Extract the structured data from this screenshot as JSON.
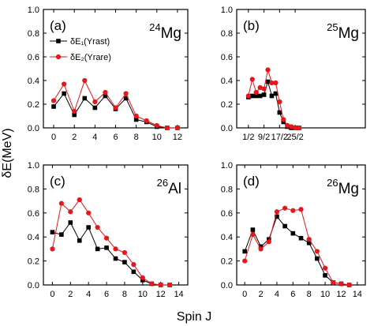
{
  "figure": {
    "ylabel": "δE(MeV)",
    "xlabel": "Spin J"
  },
  "legend": {
    "entries": [
      {
        "label": "δE₁(Yrast)",
        "color": "#000000",
        "marker": "square"
      },
      {
        "label": "δE₂(Yrare)",
        "color": "#e8151b",
        "marker": "circle"
      }
    ]
  },
  "chart_data": [
    {
      "type": "line",
      "panel": "(a)",
      "label_mass": "24",
      "label_element": "Mg",
      "xlim": [
        -1,
        13
      ],
      "ylim": [
        0.0,
        1.0
      ],
      "x_ticks": [
        0,
        2,
        4,
        6,
        8,
        10,
        12
      ],
      "x_tick_labels": [
        "0",
        "2",
        "4",
        "6",
        "8",
        "10",
        "12"
      ],
      "y_ticks": [
        0.0,
        0.2,
        0.4,
        0.6,
        0.8,
        1.0
      ],
      "y_tick_labels": [
        "0.0",
        "0.2",
        "0.4",
        "0.6",
        "0.8",
        "1.0"
      ],
      "series": [
        {
          "name": "δE₁(Yrast)",
          "color": "#000000",
          "marker": "square",
          "x": [
            0,
            1,
            2,
            3,
            4,
            5,
            6,
            7,
            8,
            9,
            10,
            11,
            12
          ],
          "y": [
            0.18,
            0.29,
            0.11,
            0.25,
            0.17,
            0.27,
            0.16,
            0.25,
            0.07,
            0.05,
            0.01,
            0.0,
            0.0
          ]
        },
        {
          "name": "δE₂(Yrare)",
          "color": "#e8151b",
          "marker": "circle",
          "x": [
            0,
            1,
            2,
            3,
            4,
            5,
            6,
            7,
            8,
            9,
            10,
            11,
            12
          ],
          "y": [
            0.23,
            0.37,
            0.14,
            0.4,
            0.22,
            0.3,
            0.17,
            0.29,
            0.1,
            0.06,
            0.02,
            0.0,
            0.0
          ]
        }
      ]
    },
    {
      "type": "line",
      "panel": "(b)",
      "label_mass": "25",
      "label_element": "Mg",
      "xlim": [
        -2.5,
        30.5
      ],
      "ylim": [
        0.0,
        1.0
      ],
      "x_ticks": [
        0.5,
        4.5,
        8.5,
        12.5
      ],
      "x_tick_labels": [
        "1/2",
        "9/2",
        "17/2",
        "25/2"
      ],
      "y_ticks": [
        0.0,
        0.2,
        0.4,
        0.6,
        0.8,
        1.0
      ],
      "y_tick_labels": [
        "0.0",
        "0.2",
        "0.4",
        "0.6",
        "0.8",
        "1.0"
      ],
      "series": [
        {
          "name": "δE₁(Yrast)",
          "color": "#000000",
          "marker": "square",
          "x": [
            0.5,
            1.5,
            2.5,
            3.5,
            4.5,
            5.5,
            6.5,
            7.5,
            8.5,
            9.5,
            10.5,
            11.5,
            12.5,
            13.5
          ],
          "y": [
            0.26,
            0.27,
            0.27,
            0.27,
            0.28,
            0.39,
            0.27,
            0.29,
            0.13,
            0.05,
            0.01,
            0.0,
            0.0,
            0.0
          ]
        },
        {
          "name": "δE₂(Yrare)",
          "color": "#e8151b",
          "marker": "circle",
          "x": [
            0.5,
            1.5,
            2.5,
            3.5,
            4.5,
            5.5,
            6.5,
            7.5,
            8.5,
            9.5,
            10.5,
            11.5,
            12.5,
            13.5
          ],
          "y": [
            0.27,
            0.41,
            0.3,
            0.34,
            0.33,
            0.49,
            0.38,
            0.38,
            0.22,
            0.07,
            0.02,
            0.01,
            0.0,
            0.0
          ]
        }
      ]
    },
    {
      "type": "line",
      "panel": "(c)",
      "label_mass": "26",
      "label_element": "Al",
      "xlim": [
        -1,
        15
      ],
      "ylim": [
        0.0,
        1.0
      ],
      "x_ticks": [
        0,
        2,
        4,
        6,
        8,
        10,
        12,
        14
      ],
      "x_tick_labels": [
        "0",
        "2",
        "4",
        "6",
        "8",
        "10",
        "12",
        "14"
      ],
      "y_ticks": [
        0.0,
        0.2,
        0.4,
        0.6,
        0.8,
        1.0
      ],
      "y_tick_labels": [
        "0.0",
        "0.2",
        "0.4",
        "0.6",
        "0.8",
        "1.0"
      ],
      "series": [
        {
          "name": "δE₁(Yrast)",
          "color": "#000000",
          "marker": "square",
          "x": [
            0,
            1,
            2,
            3,
            4,
            5,
            6,
            7,
            8,
            9,
            10,
            11,
            12,
            13
          ],
          "y": [
            0.44,
            0.42,
            0.52,
            0.37,
            0.48,
            0.3,
            0.31,
            0.22,
            0.19,
            0.11,
            0.04,
            0.01,
            0.0,
            0.0
          ]
        },
        {
          "name": "δE₂(Yrare)",
          "color": "#e8151b",
          "marker": "circle",
          "x": [
            0,
            1,
            2,
            3,
            4,
            5,
            6,
            7,
            8,
            9,
            10,
            11,
            12,
            13
          ],
          "y": [
            0.3,
            0.68,
            0.61,
            0.71,
            0.6,
            0.48,
            0.39,
            0.3,
            0.27,
            0.17,
            0.06,
            0.01,
            0.0,
            0.0
          ]
        }
      ]
    },
    {
      "type": "line",
      "panel": "(d)",
      "label_mass": "26",
      "label_element": "Mg",
      "xlim": [
        -1,
        15
      ],
      "ylim": [
        0.0,
        1.0
      ],
      "x_ticks": [
        0,
        2,
        4,
        6,
        8,
        10,
        12,
        14
      ],
      "x_tick_labels": [
        "0",
        "2",
        "4",
        "6",
        "8",
        "10",
        "12",
        "14"
      ],
      "y_ticks": [
        0.0,
        0.2,
        0.4,
        0.6,
        0.8,
        1.0
      ],
      "y_tick_labels": [
        "0.0",
        "0.2",
        "0.4",
        "0.6",
        "0.8",
        "1.0"
      ],
      "series": [
        {
          "name": "δE₁(Yrast)",
          "color": "#000000",
          "marker": "square",
          "x": [
            0,
            1,
            2,
            3,
            4,
            5,
            6,
            7,
            8,
            9,
            10,
            11,
            12,
            13
          ],
          "y": [
            0.28,
            0.46,
            0.32,
            0.38,
            0.57,
            0.49,
            0.43,
            0.39,
            0.35,
            0.22,
            0.08,
            0.02,
            0.01,
            0.0
          ]
        },
        {
          "name": "δE₂(Yrare)",
          "color": "#e8151b",
          "marker": "circle",
          "x": [
            0,
            1,
            2,
            3,
            4,
            5,
            6,
            7,
            8,
            9,
            10,
            11,
            12,
            13
          ],
          "y": [
            0.2,
            0.42,
            0.3,
            0.36,
            0.61,
            0.64,
            0.62,
            0.63,
            0.38,
            0.28,
            0.14,
            0.02,
            0.01,
            0.0
          ]
        }
      ]
    }
  ]
}
